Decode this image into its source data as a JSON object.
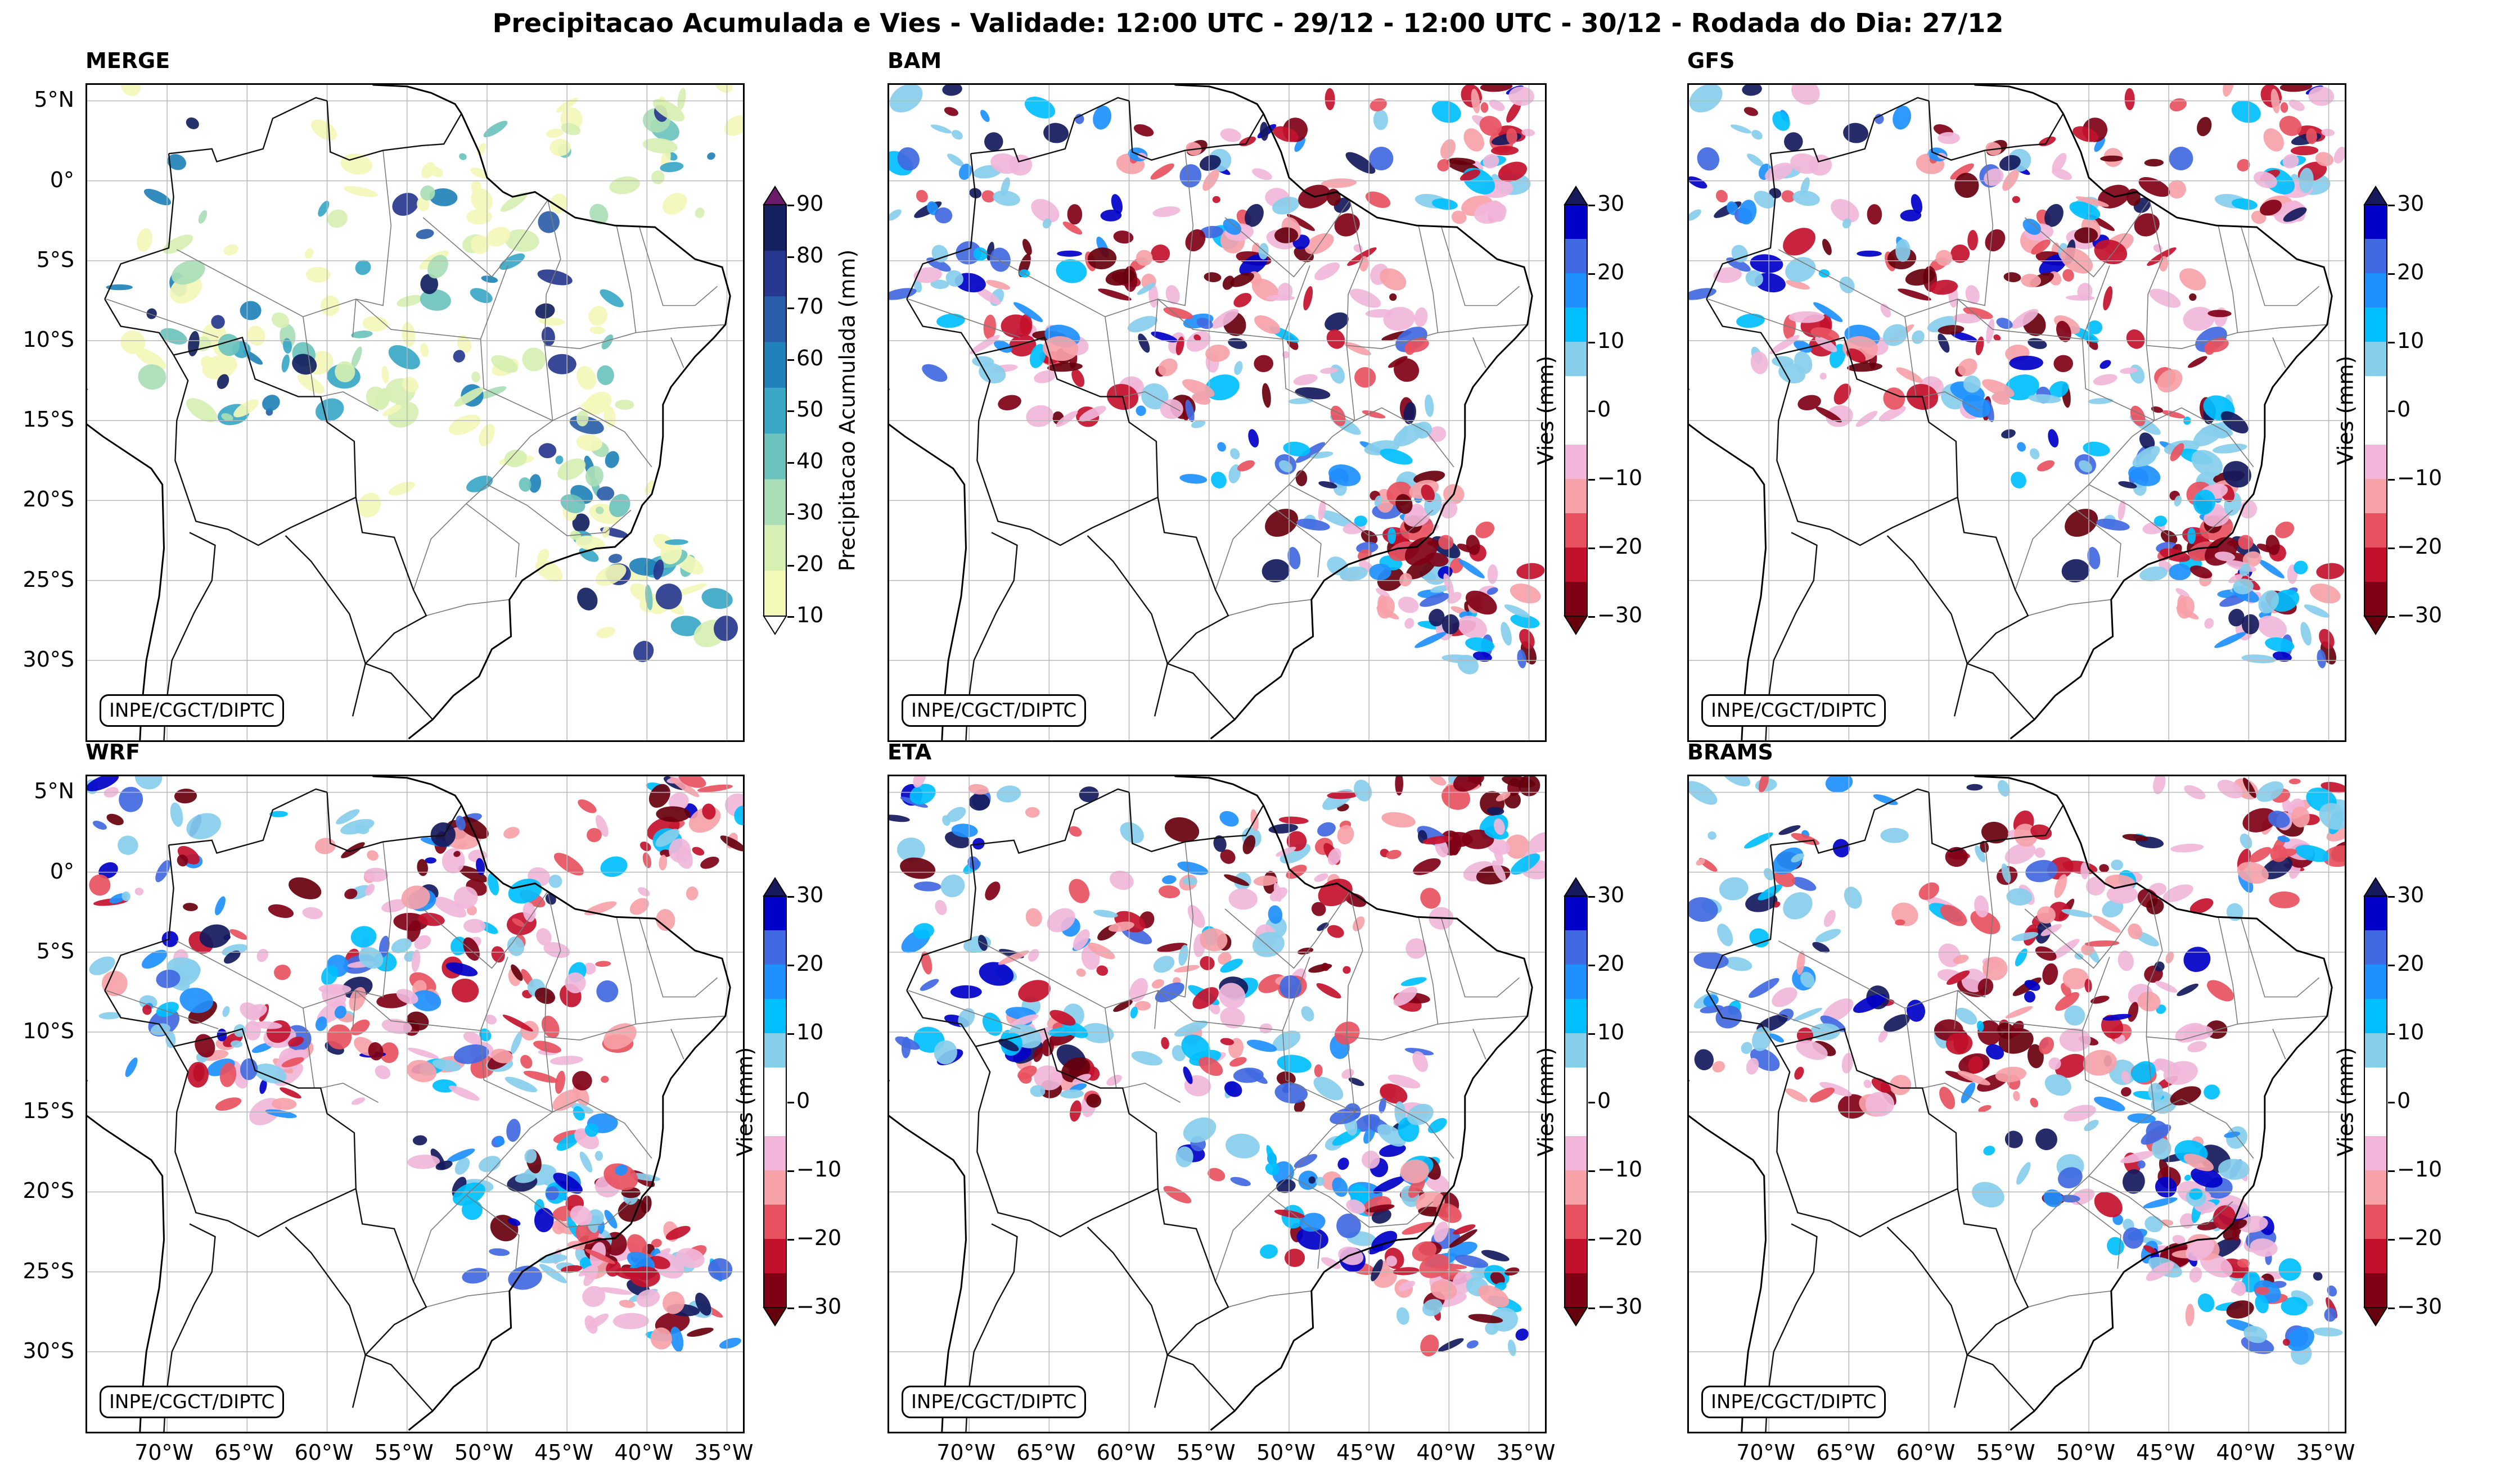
{
  "suptitle": "Precipitacao Acumulada e Vies - Validade: 12:00 UTC - 29/12 - 12:00 UTC - 30/12 - Rodada do Dia: 27/12",
  "credit": "INPE/CGCT/DIPTC",
  "lat_ticks": [
    "5°N",
    "0°",
    "5°S",
    "10°S",
    "15°S",
    "20°S",
    "25°S",
    "30°S"
  ],
  "lon_ticks": [
    "70°W",
    "65°W",
    "60°W",
    "55°W",
    "50°W",
    "45°W",
    "40°W",
    "35°W"
  ],
  "panels": [
    {
      "name": "MERGE",
      "kind": "precip"
    },
    {
      "name": "BAM",
      "kind": "bias"
    },
    {
      "name": "GFS",
      "kind": "bias"
    },
    {
      "name": "WRF",
      "kind": "bias"
    },
    {
      "name": "ETA",
      "kind": "bias"
    },
    {
      "name": "BRAMS",
      "kind": "bias"
    }
  ],
  "colorbar_precip": {
    "label": "Precipitacao Acumulada (mm)",
    "ticks": [
      "10",
      "20",
      "30",
      "40",
      "50",
      "60",
      "70",
      "80",
      "90"
    ],
    "colors": [
      "#f3f7b8",
      "#d6efb2",
      "#a9ddb6",
      "#6cc3bd",
      "#3aa7c5",
      "#2182b9",
      "#2b5ea8",
      "#27388e",
      "#14215e"
    ],
    "under_color": "#ffffff",
    "over_color": "#6a1b6a"
  },
  "colorbar_bias": {
    "label": "Vies (mm)",
    "ticks": [
      "30",
      "20",
      "10",
      "0",
      "−10",
      "−20",
      "−30"
    ],
    "colors": [
      "#0000c8",
      "#4169e1",
      "#1e90ff",
      "#00bfff",
      "#87ceeb",
      "#ffffff",
      "#ffffff",
      "#f1b6da",
      "#f7a1a8",
      "#e8515f",
      "#c3112d",
      "#800016"
    ],
    "over_color": "#141a5c",
    "under_color": "#67000d"
  }
}
